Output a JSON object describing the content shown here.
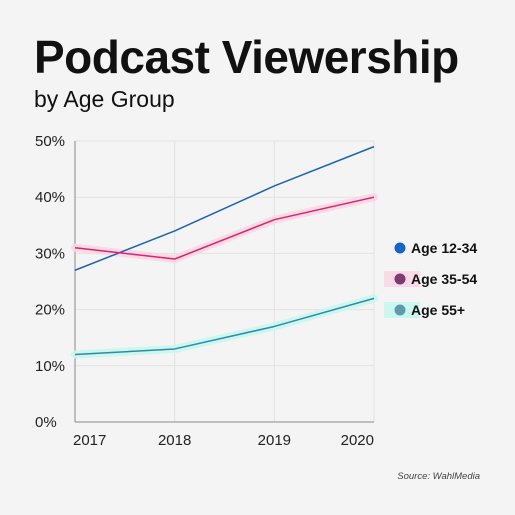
{
  "header": {
    "title": "Podcast Viewership",
    "subtitle": "by Age Group"
  },
  "source": "Source: WahlMedia",
  "chart_data": {
    "type": "line",
    "x": [
      "2017",
      "2018",
      "2019",
      "2020"
    ],
    "ylim": [
      0,
      50
    ],
    "yticks": [
      "0%",
      "10%",
      "20%",
      "30%",
      "40%",
      "50%"
    ],
    "ytick_values": [
      0,
      10,
      20,
      30,
      40,
      50
    ],
    "grid": true,
    "legend_position": "right",
    "series": [
      {
        "name": "Age 12-34",
        "values": [
          27,
          34,
          42,
          49
        ],
        "color": "#1a64b4",
        "marker_color": "#1565c8",
        "highlight": ""
      },
      {
        "name": "Age 35-54",
        "values": [
          31,
          29,
          36,
          40
        ],
        "color": "#e0206a",
        "marker_color": "#7d3a73",
        "highlight": "#fbd7e6"
      },
      {
        "name": "Age 55+",
        "values": [
          12,
          13,
          17,
          22
        ],
        "color": "#2f8aa6",
        "marker_color": "#5e9bb1",
        "highlight": "#c6f7ee"
      }
    ]
  }
}
